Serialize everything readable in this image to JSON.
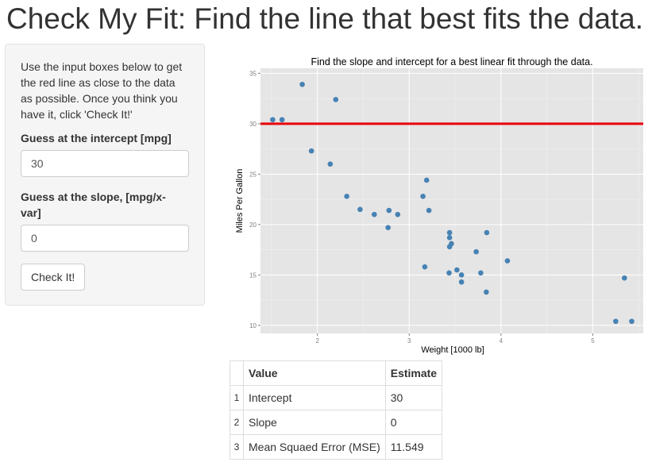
{
  "header": {
    "title": "Check My Fit: Find the line that best fits the data."
  },
  "sidebar": {
    "instructions": "Use the input boxes below to get the red line as close to the data as possible. Once you think you have it, click 'Check It!'",
    "intercept_label": "Guess at the intercept [mpg]",
    "intercept_value": "30",
    "slope_label": "Guess at the slope, [mpg/x-var]",
    "slope_value": "0",
    "check_button": "Check It!"
  },
  "chart_data": {
    "type": "scatter",
    "title": "Find the slope and intercept for a best linear fit through the data.",
    "xlabel": "Weight [1000 lb]",
    "ylabel": "Miles Per Gallon",
    "xlim": [
      1.38,
      5.55
    ],
    "ylim": [
      9.2,
      35.5
    ],
    "xticks": [
      2,
      3,
      4,
      5
    ],
    "yticks": [
      10,
      15,
      20,
      25,
      30,
      35
    ],
    "grid": true,
    "point_color": "#4682b4",
    "line_color": "#e8000b",
    "fit_line": {
      "intercept": 30,
      "slope": 0
    },
    "points": [
      [
        2.62,
        21.0
      ],
      [
        2.875,
        21.0
      ],
      [
        2.32,
        22.8
      ],
      [
        3.215,
        21.4
      ],
      [
        3.44,
        18.7
      ],
      [
        3.46,
        18.1
      ],
      [
        3.57,
        14.3
      ],
      [
        3.19,
        24.4
      ],
      [
        3.15,
        22.8
      ],
      [
        3.44,
        19.2
      ],
      [
        3.44,
        17.8
      ],
      [
        4.07,
        16.4
      ],
      [
        3.73,
        17.3
      ],
      [
        3.78,
        15.2
      ],
      [
        5.25,
        10.4
      ],
      [
        5.424,
        10.4
      ],
      [
        5.345,
        14.7
      ],
      [
        2.2,
        32.4
      ],
      [
        1.615,
        30.4
      ],
      [
        1.835,
        33.9
      ],
      [
        2.465,
        21.5
      ],
      [
        3.52,
        15.5
      ],
      [
        3.435,
        15.2
      ],
      [
        3.84,
        13.3
      ],
      [
        3.845,
        19.2
      ],
      [
        1.935,
        27.3
      ],
      [
        2.14,
        26.0
      ],
      [
        1.513,
        30.4
      ],
      [
        3.17,
        15.8
      ],
      [
        2.77,
        19.7
      ],
      [
        3.57,
        15.0
      ],
      [
        2.78,
        21.4
      ]
    ]
  },
  "results": {
    "headers": [
      "Value",
      "Estimate"
    ],
    "rows": [
      {
        "n": "1",
        "name": "Intercept",
        "value": "30"
      },
      {
        "n": "2",
        "name": "Slope",
        "value": "0"
      },
      {
        "n": "3",
        "name": "Mean Squaed Error (MSE)",
        "value": "11.549"
      }
    ]
  }
}
